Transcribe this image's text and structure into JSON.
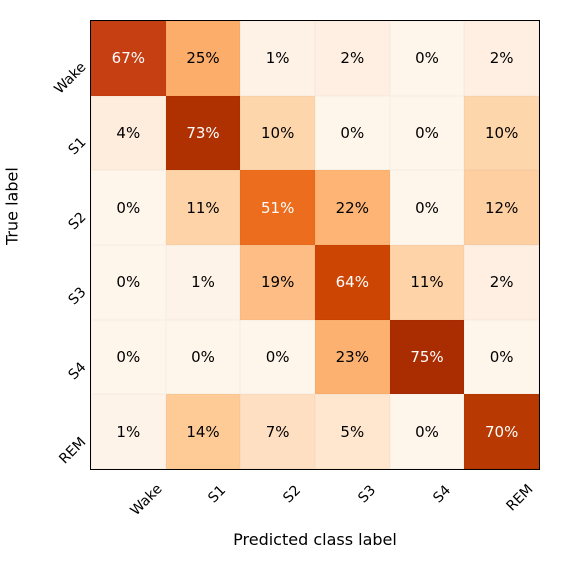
{
  "confusion_matrix": {
    "type": "heatmap",
    "ylabel": "True label",
    "xlabel": "Predicted class label",
    "row_labels": [
      "Wake",
      "S1",
      "S2",
      "S3",
      "S4",
      "REM"
    ],
    "col_labels": [
      "Wake",
      "S1",
      "S2",
      "S3",
      "S4",
      "REM"
    ],
    "values": [
      [
        67,
        25,
        1,
        2,
        0,
        2
      ],
      [
        4,
        73,
        10,
        0,
        0,
        10
      ],
      [
        0,
        11,
        51,
        22,
        0,
        12
      ],
      [
        0,
        1,
        19,
        64,
        11,
        2
      ],
      [
        0,
        0,
        0,
        23,
        75,
        0
      ],
      [
        1,
        14,
        7,
        5,
        0,
        70
      ]
    ],
    "cell_colors": [
      [
        "#c53f13",
        "#fcad6a",
        "#fef1e6",
        "#feefe2",
        "#fef5eb",
        "#feefe2"
      ],
      [
        "#feeddd",
        "#af3101",
        "#fed6ac",
        "#fef5eb",
        "#fef5eb",
        "#fed6ac"
      ],
      [
        "#fef5eb",
        "#fed3a7",
        "#ec6d1e",
        "#fdb474",
        "#fef5eb",
        "#fecfa1"
      ],
      [
        "#fef5eb",
        "#fef3e9",
        "#fdbd85",
        "#cc4503",
        "#fed3a7",
        "#feefe2"
      ],
      [
        "#fef5eb",
        "#fef5eb",
        "#fef5eb",
        "#fdb171",
        "#a92d00",
        "#fef5eb"
      ],
      [
        "#fef3e9",
        "#fecb97",
        "#fedfc1",
        "#fee7ce",
        "#fef5eb",
        "#b83901"
      ]
    ],
    "text_colors": [
      [
        "#ffffff",
        "#000000",
        "#000000",
        "#000000",
        "#000000",
        "#000000"
      ],
      [
        "#000000",
        "#ffffff",
        "#000000",
        "#000000",
        "#000000",
        "#000000"
      ],
      [
        "#000000",
        "#000000",
        "#ffffff",
        "#000000",
        "#000000",
        "#000000"
      ],
      [
        "#000000",
        "#000000",
        "#000000",
        "#ffffff",
        "#000000",
        "#000000"
      ],
      [
        "#000000",
        "#000000",
        "#000000",
        "#000000",
        "#ffffff",
        "#000000"
      ],
      [
        "#000000",
        "#000000",
        "#000000",
        "#000000",
        "#000000",
        "#ffffff"
      ]
    ],
    "label_fontsize": 14,
    "axis_title_fontsize": 16,
    "cell_fontsize": 15,
    "tick_rotation_deg": 45,
    "background_color": "#ffffff"
  }
}
